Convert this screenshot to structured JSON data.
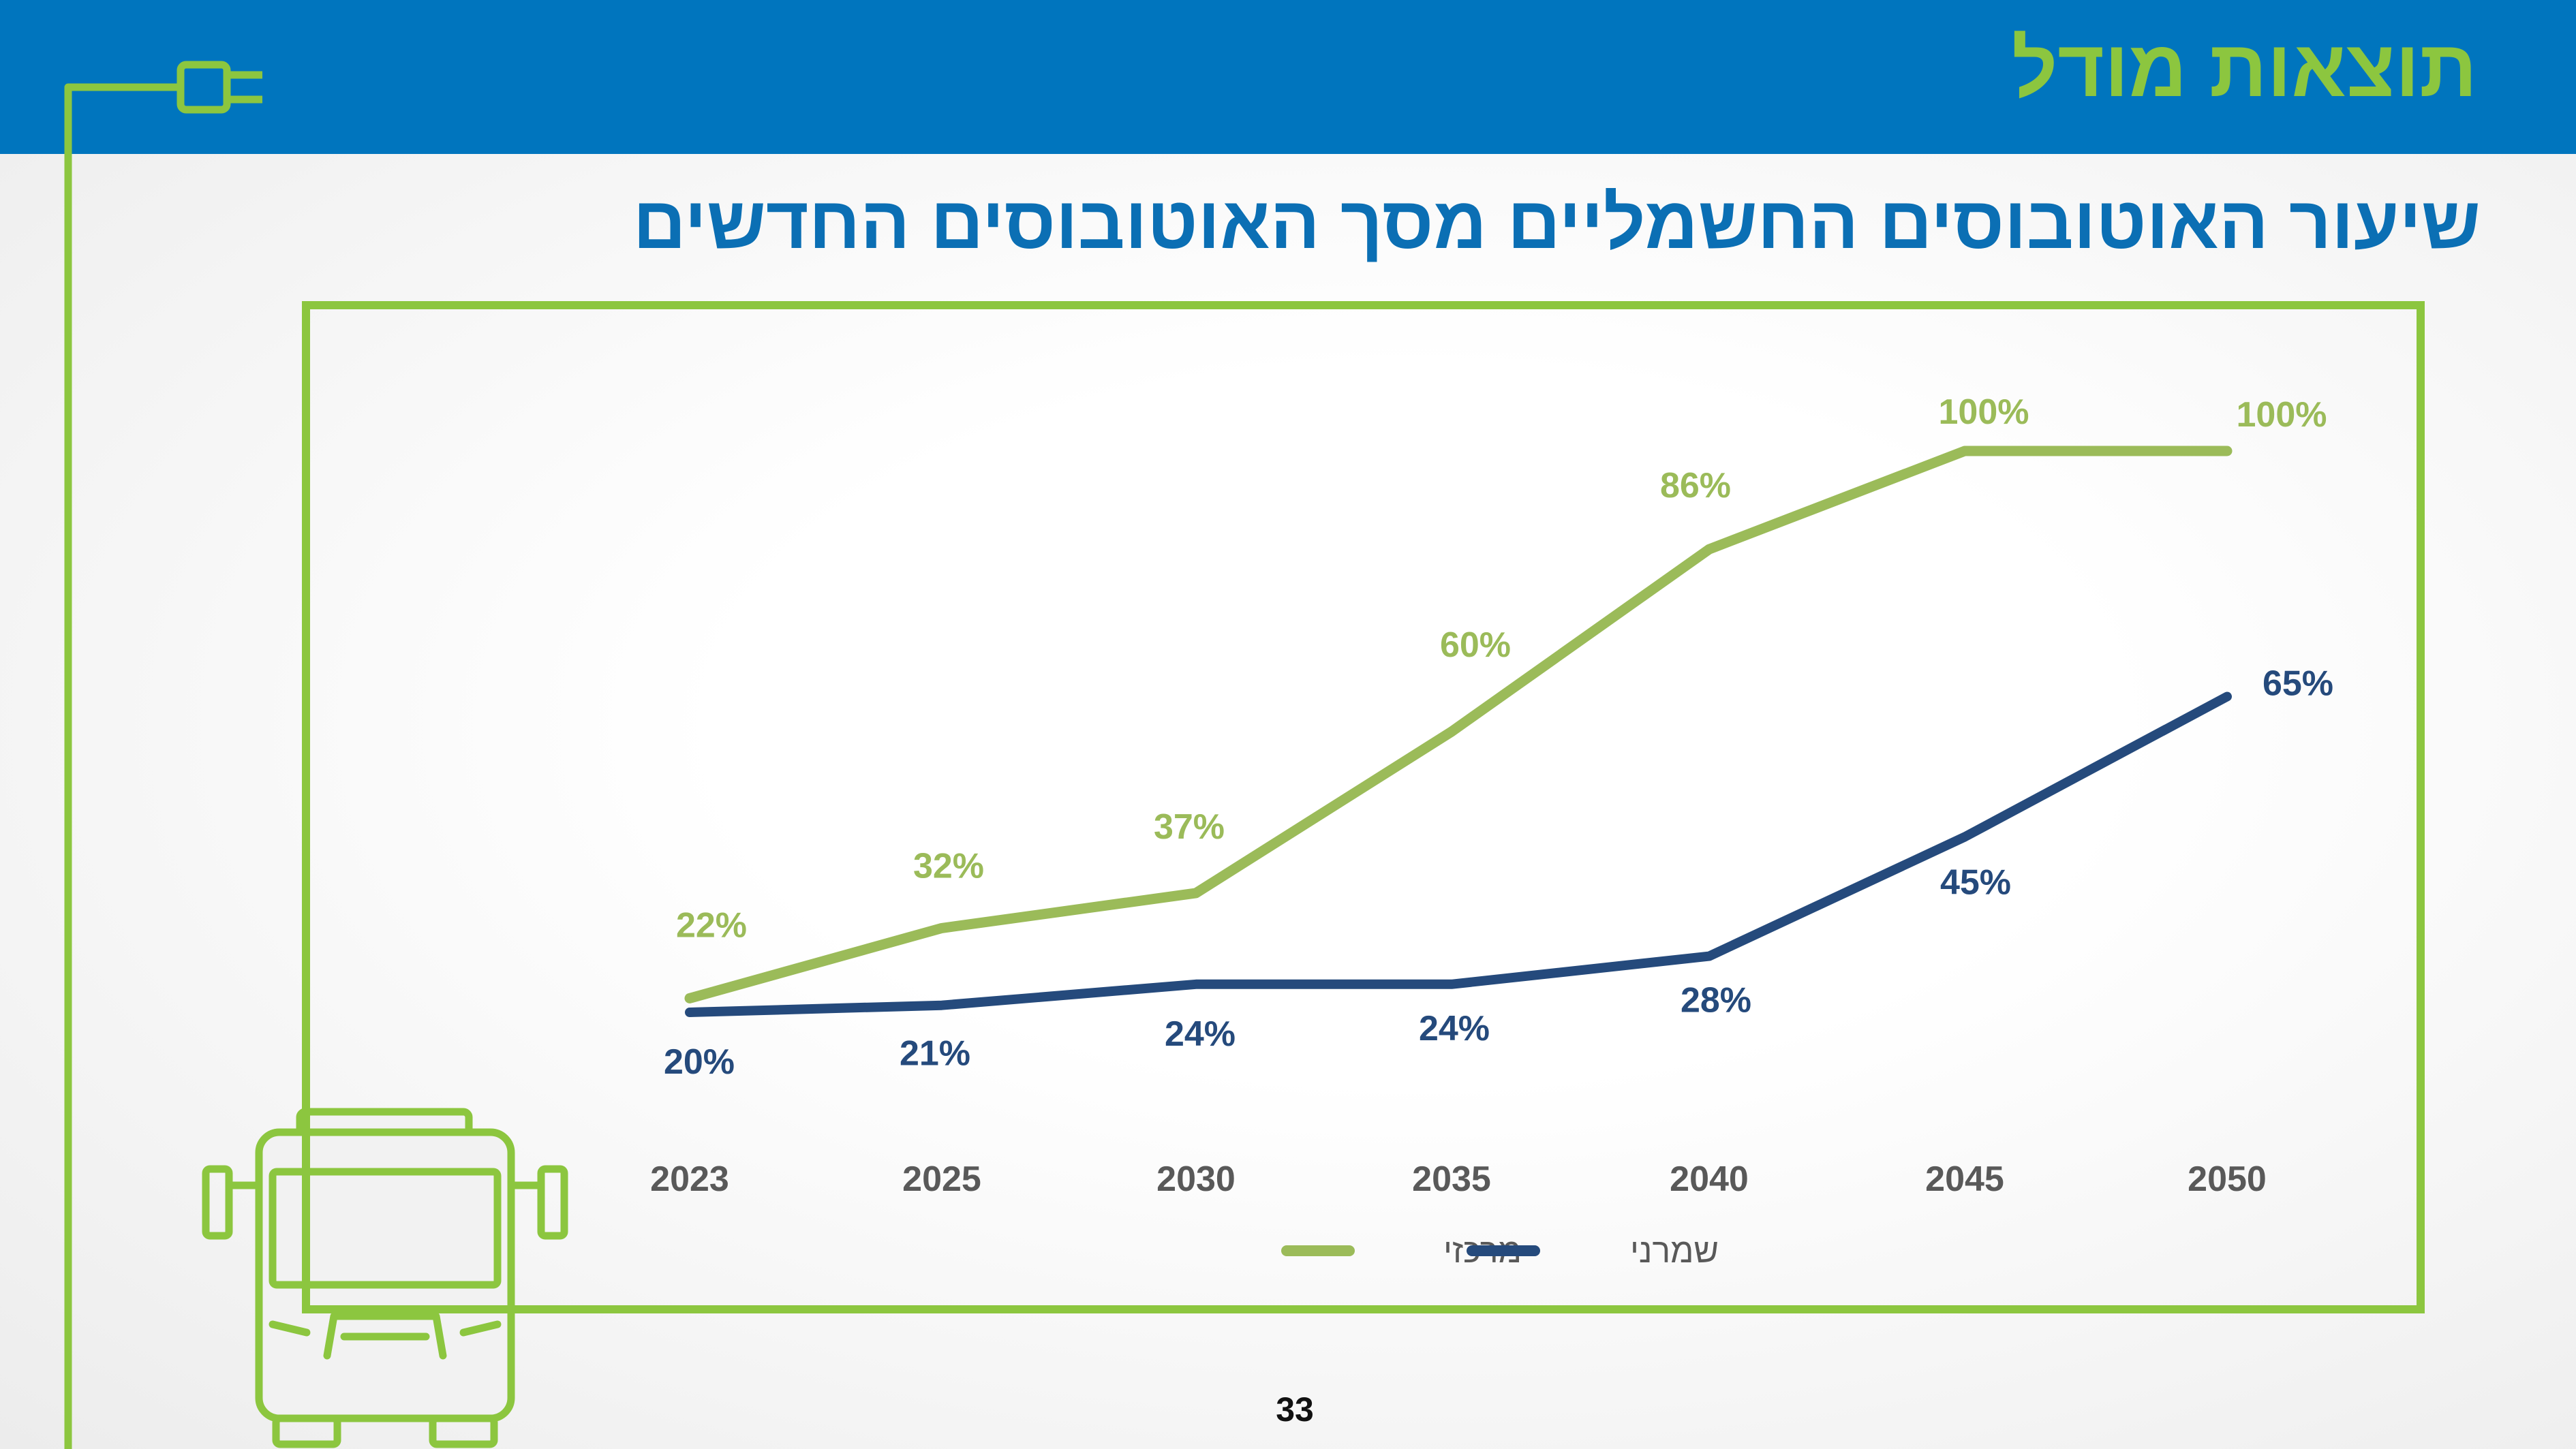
{
  "header": {
    "section_title": "תוצאות מודל"
  },
  "slide": {
    "title": "שיעור האוטובוסים החשמליים מסך האוטובוסים החדשים",
    "page_number": "33"
  },
  "colors": {
    "header_blue": "#0075be",
    "accent_green": "#8cc63f",
    "title_blue": "#0b6fb4",
    "series_central": "#9bbb59",
    "series_conservative": "#254a7c",
    "axis_label": "#595959"
  },
  "icons": [
    "plug-icon",
    "bus-icon"
  ],
  "chart_data": {
    "type": "line",
    "x": [
      "2023",
      "2025",
      "2030",
      "2035",
      "2040",
      "2045",
      "2050"
    ],
    "series": [
      {
        "name": "מרכזי",
        "values": [
          22,
          32,
          37,
          60,
          86,
          100,
          100
        ],
        "labels": [
          "22%",
          "32%",
          "37%",
          "60%",
          "86%",
          "100%",
          "100%"
        ]
      },
      {
        "name": "שמרני",
        "values": [
          20,
          21,
          24,
          24,
          28,
          45,
          65
        ],
        "labels": [
          "20%",
          "21%",
          "24%",
          "24%",
          "28%",
          "45%",
          "65%"
        ]
      }
    ],
    "ylim": [
      0,
      100
    ],
    "grid": false,
    "legend_position": "bottom"
  }
}
